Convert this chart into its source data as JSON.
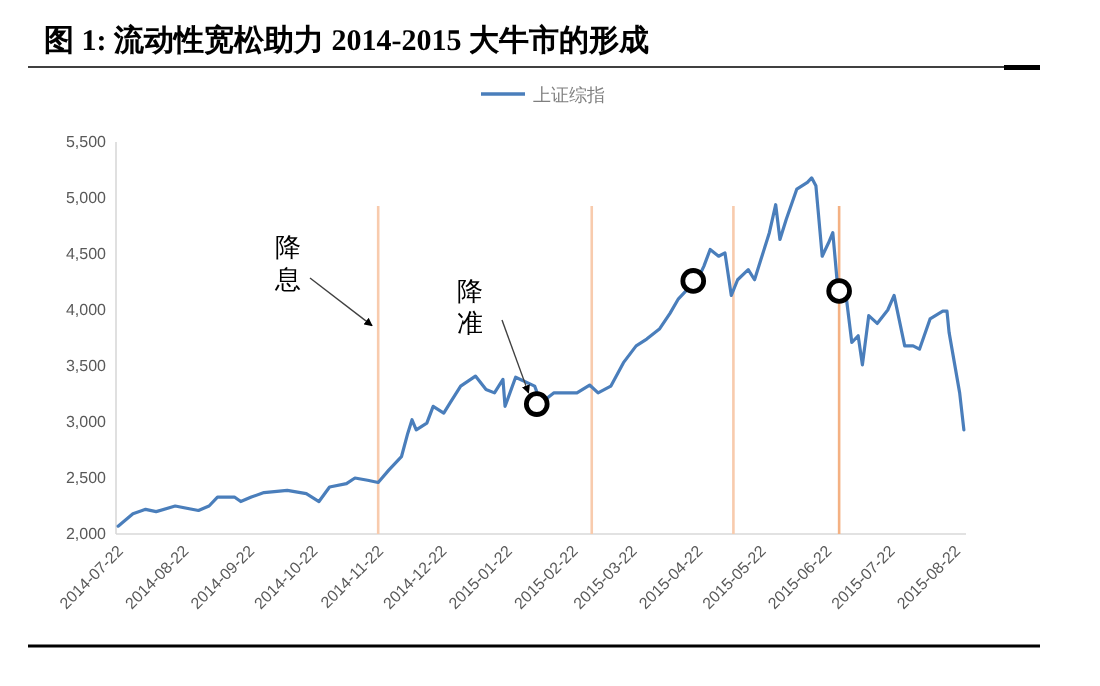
{
  "chart_data": {
    "type": "line",
    "title": "图  1:  流动性宽松助力 2014-2015 大牛市的形成",
    "xlim": [
      "2014-07-21",
      "2015-08-27"
    ],
    "ylim": [
      2000,
      5500
    ],
    "yticks": [
      {
        "value": 2000,
        "label": "2,000"
      },
      {
        "value": 2500,
        "label": "2,500"
      },
      {
        "value": 3000,
        "label": "3,000"
      },
      {
        "value": 3500,
        "label": "3,500"
      },
      {
        "value": 4000,
        "label": "4,000"
      },
      {
        "value": 4500,
        "label": "4,500"
      },
      {
        "value": 5000,
        "label": "5,000"
      },
      {
        "value": 5500,
        "label": "5,500"
      }
    ],
    "xticks": [
      {
        "value": "2014-07-22",
        "label": "2014-07-22"
      },
      {
        "value": "2014-08-22",
        "label": "2014-08-22"
      },
      {
        "value": "2014-09-22",
        "label": "2014-09-22"
      },
      {
        "value": "2014-10-22",
        "label": "2014-10-22"
      },
      {
        "value": "2014-11-22",
        "label": "2014-11-22"
      },
      {
        "value": "2014-12-22",
        "label": "2014-12-22"
      },
      {
        "value": "2015-01-22",
        "label": "2015-01-22"
      },
      {
        "value": "2015-02-22",
        "label": "2015-02-22"
      },
      {
        "value": "2015-03-22",
        "label": "2015-03-22"
      },
      {
        "value": "2015-04-22",
        "label": "2015-04-22"
      },
      {
        "value": "2015-05-22",
        "label": "2015-05-22"
      },
      {
        "value": "2015-06-22",
        "label": "2015-06-22"
      },
      {
        "value": "2015-07-22",
        "label": "2015-07-22"
      },
      {
        "value": "2015-08-22",
        "label": "2015-08-22"
      }
    ],
    "grid": false,
    "legend": "top",
    "series": [
      {
        "name": "上证综指",
        "type": "line",
        "color": "#4a7ebb",
        "x": [
          "2014-07-22",
          "2014-07-29",
          "2014-08-04",
          "2014-08-09",
          "2014-08-18",
          "2014-08-29",
          "2014-09-03",
          "2014-09-07",
          "2014-09-15",
          "2014-09-18",
          "2014-09-23",
          "2014-09-29",
          "2014-10-10",
          "2014-10-19",
          "2014-10-25",
          "2014-10-30",
          "2014-11-07",
          "2014-11-11",
          "2014-11-17",
          "2014-11-22",
          "2014-11-27",
          "2014-12-03",
          "2014-12-06",
          "2014-12-08",
          "2014-12-10",
          "2014-12-15",
          "2014-12-18",
          "2014-12-23",
          "2014-12-26",
          "2014-12-31",
          "2015-01-07",
          "2015-01-12",
          "2015-01-16",
          "2015-01-20",
          "2015-01-21",
          "2015-01-26",
          "2015-02-04",
          "2015-02-07",
          "2015-02-13",
          "2015-02-24",
          "2015-03-02",
          "2015-03-06",
          "2015-03-12",
          "2015-03-18",
          "2015-03-24",
          "2015-03-29",
          "2015-04-04",
          "2015-04-09",
          "2015-04-13",
          "2015-04-17",
          "2015-04-22",
          "2015-04-25",
          "2015-04-28",
          "2015-05-02",
          "2015-05-05",
          "2015-05-08",
          "2015-05-11",
          "2015-05-16",
          "2015-05-19",
          "2015-05-22",
          "2015-05-26",
          "2015-05-29",
          "2015-05-31",
          "2015-06-03",
          "2015-06-08",
          "2015-06-13",
          "2015-06-15",
          "2015-06-17",
          "2015-06-18",
          "2015-06-20",
          "2015-06-23",
          "2015-06-25",
          "2015-06-27",
          "2015-07-01",
          "2015-07-04",
          "2015-07-07",
          "2015-07-09",
          "2015-07-12",
          "2015-07-16",
          "2015-07-21",
          "2015-07-24",
          "2015-07-29",
          "2015-08-02",
          "2015-08-05",
          "2015-08-10",
          "2015-08-16",
          "2015-08-18",
          "2015-08-19",
          "2015-08-24",
          "2015-08-26"
        ],
        "values": [
          2070,
          2180,
          2220,
          2200,
          2250,
          2210,
          2250,
          2330,
          2330,
          2290,
          2330,
          2370,
          2390,
          2360,
          2290,
          2420,
          2450,
          2500,
          2480,
          2460,
          2570,
          2690,
          2900,
          3020,
          2930,
          2990,
          3140,
          3080,
          3170,
          3320,
          3410,
          3290,
          3260,
          3380,
          3140,
          3400,
          3320,
          3170,
          3260,
          3260,
          3330,
          3260,
          3320,
          3530,
          3680,
          3740,
          3830,
          3970,
          4100,
          4180,
          4270,
          4390,
          4540,
          4480,
          4510,
          4130,
          4270,
          4360,
          4270,
          4450,
          4690,
          4940,
          4630,
          4810,
          5080,
          5140,
          5180,
          5110,
          4900,
          4480,
          4600,
          4690,
          4270,
          4170,
          3710,
          3770,
          3510,
          3950,
          3880,
          4000,
          4130,
          3680,
          3680,
          3650,
          3920,
          3990,
          3990,
          3800,
          3260,
          2930
        ]
      },
      {
        "type": "scatter",
        "marker": "circle",
        "color": "#000000",
        "x": [
          "2015-02-05",
          "2015-04-20",
          "2015-06-28"
        ],
        "values": [
          3160,
          4260,
          4170
        ]
      }
    ],
    "ref_lines": [
      {
        "axis": "x",
        "value": "2014-11-22",
        "color": "#f8cbad"
      },
      {
        "axis": "x",
        "value": "2015-03-03",
        "color": "#f8cbad"
      },
      {
        "axis": "x",
        "value": "2015-05-09",
        "color": "#f8cbad"
      },
      {
        "axis": "x",
        "value": "2015-06-28",
        "color": "#f4b183"
      }
    ],
    "annotations": [
      {
        "text": "降息",
        "x": "2014-11-21",
        "y": 3860
      },
      {
        "text": "降准",
        "x": "2015-02-03",
        "y": 3260
      }
    ]
  }
}
